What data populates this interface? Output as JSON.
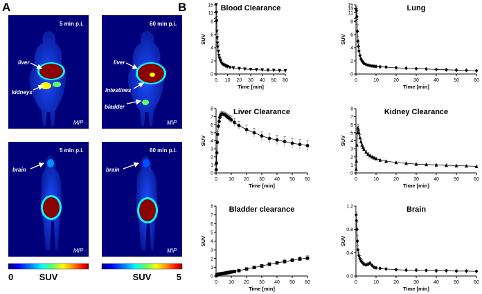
{
  "panel_labels": {
    "a": "A",
    "b": "B"
  },
  "colorbar": {
    "min_label": "0",
    "max_label": "5",
    "unit_label": "SUV",
    "stops": [
      "#00007a",
      "#0000ff",
      "#0090ff",
      "#00ffff",
      "#60ff60",
      "#ffff00",
      "#ff8000",
      "#ff0000",
      "#8b0000"
    ]
  },
  "images": [
    {
      "time_label": "5 min p.i.",
      "mip_label": "MIP",
      "annotations": [
        {
          "label": "liver"
        },
        {
          "label": "kidneys"
        }
      ]
    },
    {
      "time_label": "60 min p.i.",
      "mip_label": "MIP",
      "annotations": [
        {
          "label": "liver"
        },
        {
          "label": "intestines"
        },
        {
          "label": "bladder"
        }
      ]
    },
    {
      "time_label": "5 min p.i.",
      "mip_label": "MIP",
      "annotations": [
        {
          "label": "brain"
        }
      ]
    },
    {
      "time_label": "60 min p.i.",
      "mip_label": "MIP",
      "annotations": [
        {
          "label": "brain"
        }
      ]
    }
  ],
  "chart_data": [
    {
      "type": "line",
      "title": "Blood Clearance",
      "xlabel": "Time [min]",
      "ylabel": "SUV",
      "marker": "triangle-down",
      "xlim": [
        0,
        60
      ],
      "xticks": [
        "0",
        "10",
        "20",
        "30",
        "40",
        "50",
        "60"
      ],
      "y_broken_axis": true,
      "yticks": [
        "0",
        "2",
        "4",
        "6",
        "8",
        "11",
        "15"
      ],
      "x": [
        0.1,
        0.25,
        0.5,
        0.75,
        1,
        1.25,
        1.5,
        2,
        2.5,
        3,
        3.5,
        4,
        5,
        6,
        7,
        8,
        9,
        10,
        12,
        15,
        20,
        25,
        30,
        35,
        40,
        45,
        50,
        55,
        60
      ],
      "values": [
        15,
        11,
        8,
        6.5,
        5.5,
        4.7,
        4.1,
        3.4,
        2.8,
        2.4,
        2.1,
        1.9,
        1.6,
        1.45,
        1.35,
        1.25,
        1.18,
        1.1,
        1.0,
        0.92,
        0.82,
        0.75,
        0.7,
        0.66,
        0.62,
        0.58,
        0.55,
        0.52,
        0.5
      ],
      "error": [
        0,
        1.5,
        1,
        0.8,
        0.6,
        0.5,
        0.4,
        0.3,
        0.25,
        0.2,
        0.2,
        0.15,
        0.12,
        0.1,
        0.1,
        0.1,
        0.1,
        0.08,
        0.08,
        0.06,
        0.05,
        0.05,
        0.04,
        0.04,
        0.04,
        0.03,
        0.03,
        0.03,
        0.03
      ]
    },
    {
      "type": "line",
      "title": "Lung",
      "xlabel": "Time [min]",
      "ylabel": "SUV",
      "marker": "diamond",
      "xlim": [
        0,
        60
      ],
      "xticks": [
        "0",
        "10",
        "20",
        "30",
        "40",
        "50",
        "60"
      ],
      "y_broken_axis": true,
      "yticks": [
        "0",
        "2",
        "4",
        "6",
        "8",
        "11",
        "13",
        "15"
      ],
      "x": [
        0.1,
        0.25,
        0.5,
        0.75,
        1,
        1.25,
        1.5,
        2,
        2.5,
        3,
        3.5,
        4,
        5,
        6,
        7,
        8,
        9,
        10,
        12,
        15,
        20,
        25,
        30,
        35,
        40,
        45,
        50,
        55,
        60
      ],
      "values": [
        13,
        12,
        9,
        6.5,
        5,
        4.2,
        3.5,
        2.8,
        2.3,
        2.0,
        1.8,
        1.6,
        1.45,
        1.35,
        1.28,
        1.22,
        1.18,
        1.15,
        1.1,
        1.05,
        0.95,
        0.88,
        0.82,
        0.76,
        0.7,
        0.65,
        0.6,
        0.55,
        0.5
      ],
      "error": [
        2,
        2,
        1.5,
        1,
        0.7,
        0.5,
        0.4,
        0.3,
        0.25,
        0.2,
        0.15,
        0.12,
        0.1,
        0.1,
        0.08,
        0.08,
        0.08,
        0.08,
        0.07,
        0.06,
        0.05,
        0.05,
        0.04,
        0.04,
        0.04,
        0.03,
        0.03,
        0.03,
        0.03
      ]
    },
    {
      "type": "line",
      "title": "Liver Clearance",
      "xlabel": "Time [min]",
      "ylabel": "SUV",
      "marker": "circle",
      "xlim": [
        0,
        60
      ],
      "ylim": [
        0,
        8
      ],
      "xticks": [
        "0",
        "10",
        "20",
        "30",
        "40",
        "50",
        "60"
      ],
      "yticks": [
        "0",
        "1",
        "2",
        "3",
        "4",
        "5",
        "6",
        "7",
        "8"
      ],
      "x": [
        0.1,
        0.25,
        0.5,
        0.75,
        1,
        1.5,
        2,
        2.5,
        3,
        3.5,
        4,
        5,
        6,
        7,
        8,
        9,
        10,
        12,
        15,
        20,
        25,
        30,
        35,
        40,
        45,
        50,
        55,
        60
      ],
      "values": [
        0.4,
        1.2,
        2.5,
        3.8,
        4.8,
        5.8,
        6.4,
        6.9,
        7.2,
        7.3,
        7.35,
        7.3,
        7.2,
        7.05,
        6.9,
        6.75,
        6.6,
        6.3,
        5.9,
        5.4,
        5.0,
        4.6,
        4.3,
        4.1,
        3.9,
        3.7,
        3.55,
        3.4
      ],
      "error": [
        0.1,
        0.2,
        0.3,
        0.3,
        0.3,
        0.3,
        0.3,
        0.3,
        0.3,
        0.3,
        0.3,
        0.35,
        0.35,
        0.4,
        0.4,
        0.45,
        0.45,
        0.5,
        0.5,
        0.55,
        0.55,
        0.6,
        0.6,
        0.6,
        0.6,
        0.6,
        0.6,
        0.6
      ]
    },
    {
      "type": "line",
      "title": "Kidney Clearance",
      "xlabel": "Time [min]",
      "ylabel": "SUV",
      "marker": "triangle",
      "xlim": [
        0,
        60
      ],
      "ylim": [
        0,
        8
      ],
      "xticks": [
        "0",
        "10",
        "20",
        "30",
        "40",
        "50",
        "60"
      ],
      "yticks": [
        "0",
        "1",
        "2",
        "3",
        "4",
        "5",
        "6",
        "7",
        "8"
      ],
      "x": [
        0.1,
        0.25,
        0.5,
        0.75,
        1,
        1.25,
        1.5,
        2,
        2.5,
        3,
        3.5,
        4,
        5,
        6,
        7,
        8,
        9,
        10,
        12,
        15,
        20,
        25,
        30,
        35,
        40,
        45,
        50,
        55,
        60
      ],
      "values": [
        0.5,
        1.5,
        3.5,
        5.0,
        5.6,
        5.4,
        5.0,
        4.4,
        3.9,
        3.5,
        3.2,
        2.95,
        2.6,
        2.35,
        2.15,
        2.0,
        1.88,
        1.78,
        1.6,
        1.45,
        1.3,
        1.2,
        1.1,
        1.05,
        1.0,
        0.95,
        0.9,
        0.87,
        0.82
      ],
      "error": [
        0.2,
        0.5,
        0.8,
        0.6,
        0.5,
        0.45,
        0.4,
        0.35,
        0.3,
        0.25,
        0.22,
        0.2,
        0.18,
        0.16,
        0.15,
        0.14,
        0.13,
        0.12,
        0.1,
        0.09,
        0.08,
        0.07,
        0.07,
        0.06,
        0.06,
        0.05,
        0.05,
        0.05,
        0.05
      ]
    },
    {
      "type": "line",
      "title": "Bladder clearance",
      "xlabel": "Time [min]",
      "ylabel": "SUV",
      "marker": "square",
      "xlim": [
        0,
        60
      ],
      "ylim": [
        0,
        8
      ],
      "xticks": [
        "0",
        "10",
        "20",
        "30",
        "40",
        "50",
        "60"
      ],
      "yticks": [
        "0",
        "1",
        "2",
        "3",
        "4",
        "5",
        "6",
        "7",
        "8"
      ],
      "x": [
        0.5,
        1,
        1.5,
        2,
        3,
        4,
        5,
        6,
        7,
        8,
        9,
        10,
        12,
        15,
        20,
        25,
        30,
        35,
        40,
        45,
        50,
        55,
        60
      ],
      "values": [
        0.1,
        0.15,
        0.2,
        0.22,
        0.25,
        0.28,
        0.3,
        0.33,
        0.36,
        0.4,
        0.43,
        0.47,
        0.52,
        0.62,
        0.8,
        0.98,
        1.15,
        1.35,
        1.5,
        1.65,
        1.8,
        1.95,
        2.05
      ],
      "error": [
        0.05,
        0.05,
        0.05,
        0.05,
        0.06,
        0.06,
        0.07,
        0.07,
        0.08,
        0.08,
        0.08,
        0.09,
        0.1,
        0.1,
        0.12,
        0.14,
        0.16,
        0.18,
        0.2,
        0.22,
        0.24,
        0.26,
        0.28
      ]
    },
    {
      "type": "line",
      "title": "Brain",
      "xlabel": "Time [min]",
      "ylabel": "SUV",
      "marker": "diamond",
      "xlim": [
        0,
        60
      ],
      "ylim": [
        0,
        1.2
      ],
      "xticks": [
        "0",
        "10",
        "20",
        "30",
        "40",
        "50",
        "60"
      ],
      "yticks": [
        "0.0",
        "0.4",
        "0.8",
        "1.2"
      ],
      "x": [
        0.1,
        0.25,
        0.5,
        0.75,
        1,
        1.5,
        2,
        2.5,
        3,
        3.5,
        4,
        5,
        6,
        7,
        8,
        9,
        10,
        12,
        15,
        20,
        25,
        30,
        35,
        40,
        45,
        50,
        55,
        60
      ],
      "values": [
        1.05,
        0.95,
        0.8,
        0.6,
        0.45,
        0.35,
        0.3,
        0.26,
        0.24,
        0.22,
        0.2,
        0.19,
        0.2,
        0.22,
        0.18,
        0.15,
        0.14,
        0.13,
        0.12,
        0.11,
        0.1,
        0.1,
        0.095,
        0.09,
        0.09,
        0.085,
        0.085,
        0.08
      ],
      "error": [
        0.15,
        0.15,
        0.12,
        0.1,
        0.08,
        0.06,
        0.05,
        0.04,
        0.04,
        0.03,
        0.03,
        0.03,
        0.03,
        0.03,
        0.03,
        0.02,
        0.02,
        0.02,
        0.02,
        0.02,
        0.02,
        0.02,
        0.02,
        0.02,
        0.02,
        0.02,
        0.02,
        0.02
      ]
    }
  ]
}
